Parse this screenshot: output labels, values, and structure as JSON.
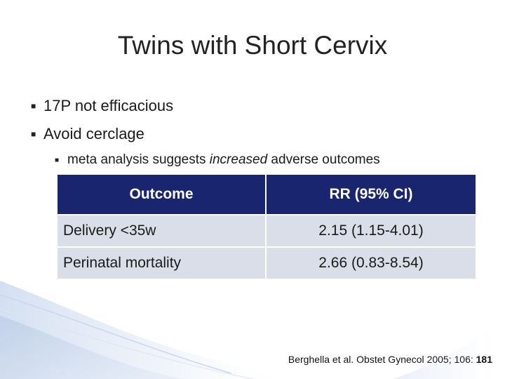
{
  "slide": {
    "title": "Twins with Short Cervix",
    "bullets": [
      "17P not efficacious",
      "Avoid cerclage"
    ],
    "sub_bullet": {
      "before": "meta analysis suggests ",
      "emphasis": "increased",
      "after": " adverse outcomes"
    },
    "table": {
      "headers": [
        "Outcome",
        "RR (95% CI)"
      ],
      "rows": [
        [
          "Delivery <35w",
          "2.15 (1.15-4.01)"
        ],
        [
          "Perinatal mortality",
          "2.66 (0.83-8.54)"
        ]
      ]
    },
    "citation": {
      "authors": "Berghella et al. ",
      "journal": "Obstet Gynecol ",
      "year": "2005",
      "sep": "; ",
      "volume": "106",
      "colon": ": ",
      "page": "181"
    }
  },
  "colors": {
    "header_bg": "#1a2570",
    "row_bg": "#d9dee8",
    "accent_blue": "#3a6fb5"
  },
  "icons": {
    "bullet_marker": "square-bullet-icon"
  }
}
